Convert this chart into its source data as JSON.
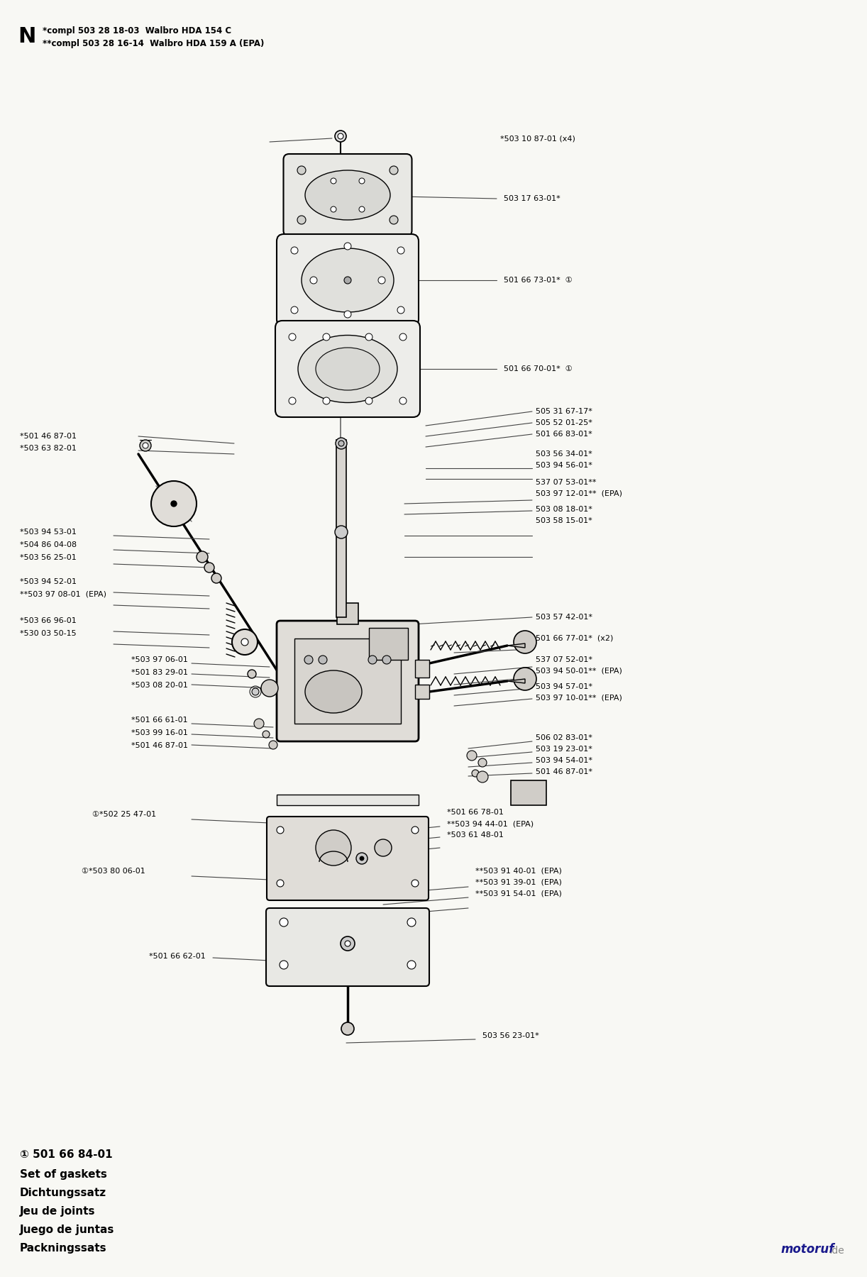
{
  "bg_color": "#f8f8f4",
  "title_letter": "N",
  "title_line1": "*compl 503 28 18-03  Walbro HDA 154 C",
  "title_line2": "**compl 503 28 16-14  Walbro HDA 159 A (EPA)",
  "footer_part_num": "① 501 66 84-01",
  "footer_lines": [
    "Set of gaskets",
    "Dichtungssatz",
    "Jeu de joints",
    "Juego de juntas",
    "Packningssats"
  ],
  "watermark_colors": {
    "m": "#1a1a8c",
    "o": "#cc6600",
    "t": "#1a1a8c",
    "o2": "#cc0000",
    "r": "#1a1a8c",
    "u": "#cc6600",
    "f": "#1a1a8c",
    "dot_de": "#888888"
  }
}
